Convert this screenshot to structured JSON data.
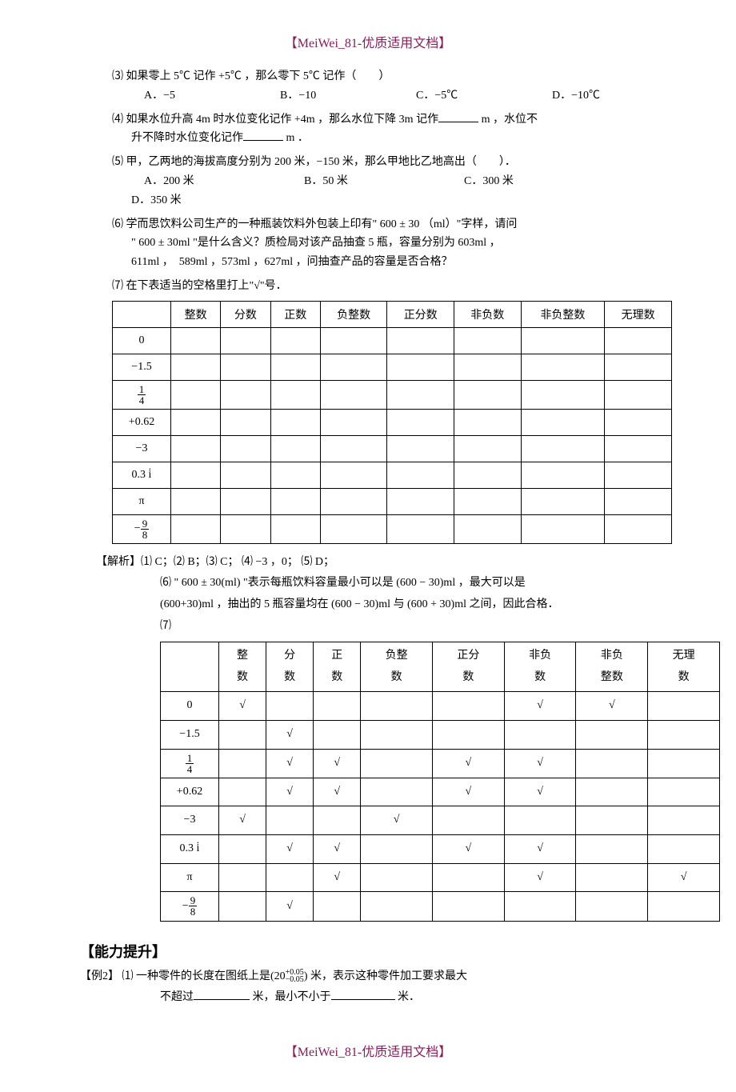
{
  "header": "【MeiWei_81-优质适用文档】",
  "footer": "【MeiWei_81-优质适用文档】",
  "colors": {
    "brand": "#8b1a5c",
    "text": "#000000",
    "border": "#000000",
    "background": "#ffffff"
  },
  "q3": {
    "num": "⑶",
    "text": "如果零上 5℃ 记作 +5℃ ，那么零下 5℃ 记作（　　）",
    "options": {
      "A": "A．−5",
      "B": "B．−10",
      "C": "C．−5℃",
      "D": "D．−10℃"
    }
  },
  "q4": {
    "num": "⑷",
    "text_a": "如果水位升高 4m 时水位变化记作 +4m ，那么水位下降 3m 记作",
    "text_b": "m ，水位不",
    "text_c": "升不降时水位变化记作",
    "text_d": "m ．"
  },
  "q5": {
    "num": "⑸",
    "text": "甲，乙两地的海拔高度分别为 200 米，−150 米，那么甲地比乙地高出（　　）．",
    "options": {
      "A": "A．200 米",
      "B": "B．50 米",
      "C": "C．300 米",
      "D": "D．350 米"
    }
  },
  "q6": {
    "num": "⑹",
    "line1": "学而思饮料公司生产的一种瓶装饮料外包装上印有\" 600 ± 30 （ml）\"字样，请问",
    "line2": "\" 600 ± 30ml \"是什么含义？质检局对该产品抽查 5 瓶，容量分别为 603ml ，",
    "line3": "611ml ，　589ml ，573ml ，627ml ，问抽查产品的容量是否合格？"
  },
  "q7": {
    "num": "⑺",
    "text": "在下表适当的空格里打上\"√\"号．"
  },
  "table1": {
    "headers": [
      "",
      "整数",
      "分数",
      "正数",
      "负整数",
      "正分数",
      "非负数",
      "非负整数",
      "无理数"
    ],
    "rows": [
      {
        "label": "0"
      },
      {
        "label": "−1.5"
      },
      {
        "label_frac": {
          "num": "1",
          "den": "4"
        }
      },
      {
        "label": "+0.62"
      },
      {
        "label": "−3"
      },
      {
        "label": "0.3 i̇"
      },
      {
        "label": "π"
      },
      {
        "label_frac_neg": {
          "num": "9",
          "den": "8"
        }
      }
    ]
  },
  "analysis": {
    "label": "【解析】",
    "line1": "⑴ C；⑵ B；⑶ C； ⑷ −3 ，0； ⑸ D；",
    "line2a": "⑹ \" 600 ± 30(ml) \"表示每瓶饮料容量最小可以是 (600 − 30)ml ，最大可以是",
    "line2b": "(600+30)ml ，抽出的 5 瓶容量均在 (600 − 30)ml 与 (600 + 30)ml 之间，因此合格．",
    "line3": "⑺"
  },
  "table2": {
    "headers": [
      "",
      "整数",
      "分数",
      "正数",
      "负整数",
      "正分数",
      "非负数",
      "非负整数",
      "无理数"
    ],
    "rows": [
      {
        "label": "0",
        "cells": [
          "√",
          "",
          "",
          "",
          "",
          "√",
          "√",
          ""
        ]
      },
      {
        "label": "−1.5",
        "cells": [
          "",
          "√",
          "",
          "",
          "",
          "",
          "",
          ""
        ]
      },
      {
        "label_frac": {
          "num": "1",
          "den": "4"
        },
        "cells": [
          "",
          "√",
          "√",
          "",
          "√",
          "√",
          "",
          ""
        ]
      },
      {
        "label": "+0.62",
        "cells": [
          "",
          "√",
          "√",
          "",
          "√",
          "√",
          "",
          ""
        ]
      },
      {
        "label": "−3",
        "cells": [
          "√",
          "",
          "",
          "√",
          "",
          "",
          "",
          ""
        ]
      },
      {
        "label": "0.3 i̇",
        "cells": [
          "",
          "√",
          "√",
          "",
          "√",
          "√",
          "",
          ""
        ]
      },
      {
        "label": "π",
        "cells": [
          "",
          "",
          "√",
          "",
          "",
          "√",
          "",
          "√"
        ]
      },
      {
        "label_frac_neg": {
          "num": "9",
          "den": "8"
        },
        "cells": [
          "",
          "√",
          "",
          "",
          "",
          "",
          "",
          ""
        ]
      }
    ]
  },
  "ability": {
    "section": "【能力提升】",
    "ex_label": "【例2】",
    "q_num": "⑴",
    "line1a": "一种零件的长度在图纸上是",
    "paren_open": "(",
    "base": "20",
    "sup": "+0.05",
    "sub": "−0.05",
    "paren_close": ")",
    "line1b": "米，表示这种零件加工要求最大",
    "line2a": "不超过",
    "line2b": "米，最小不小于",
    "line2c": "米．"
  }
}
